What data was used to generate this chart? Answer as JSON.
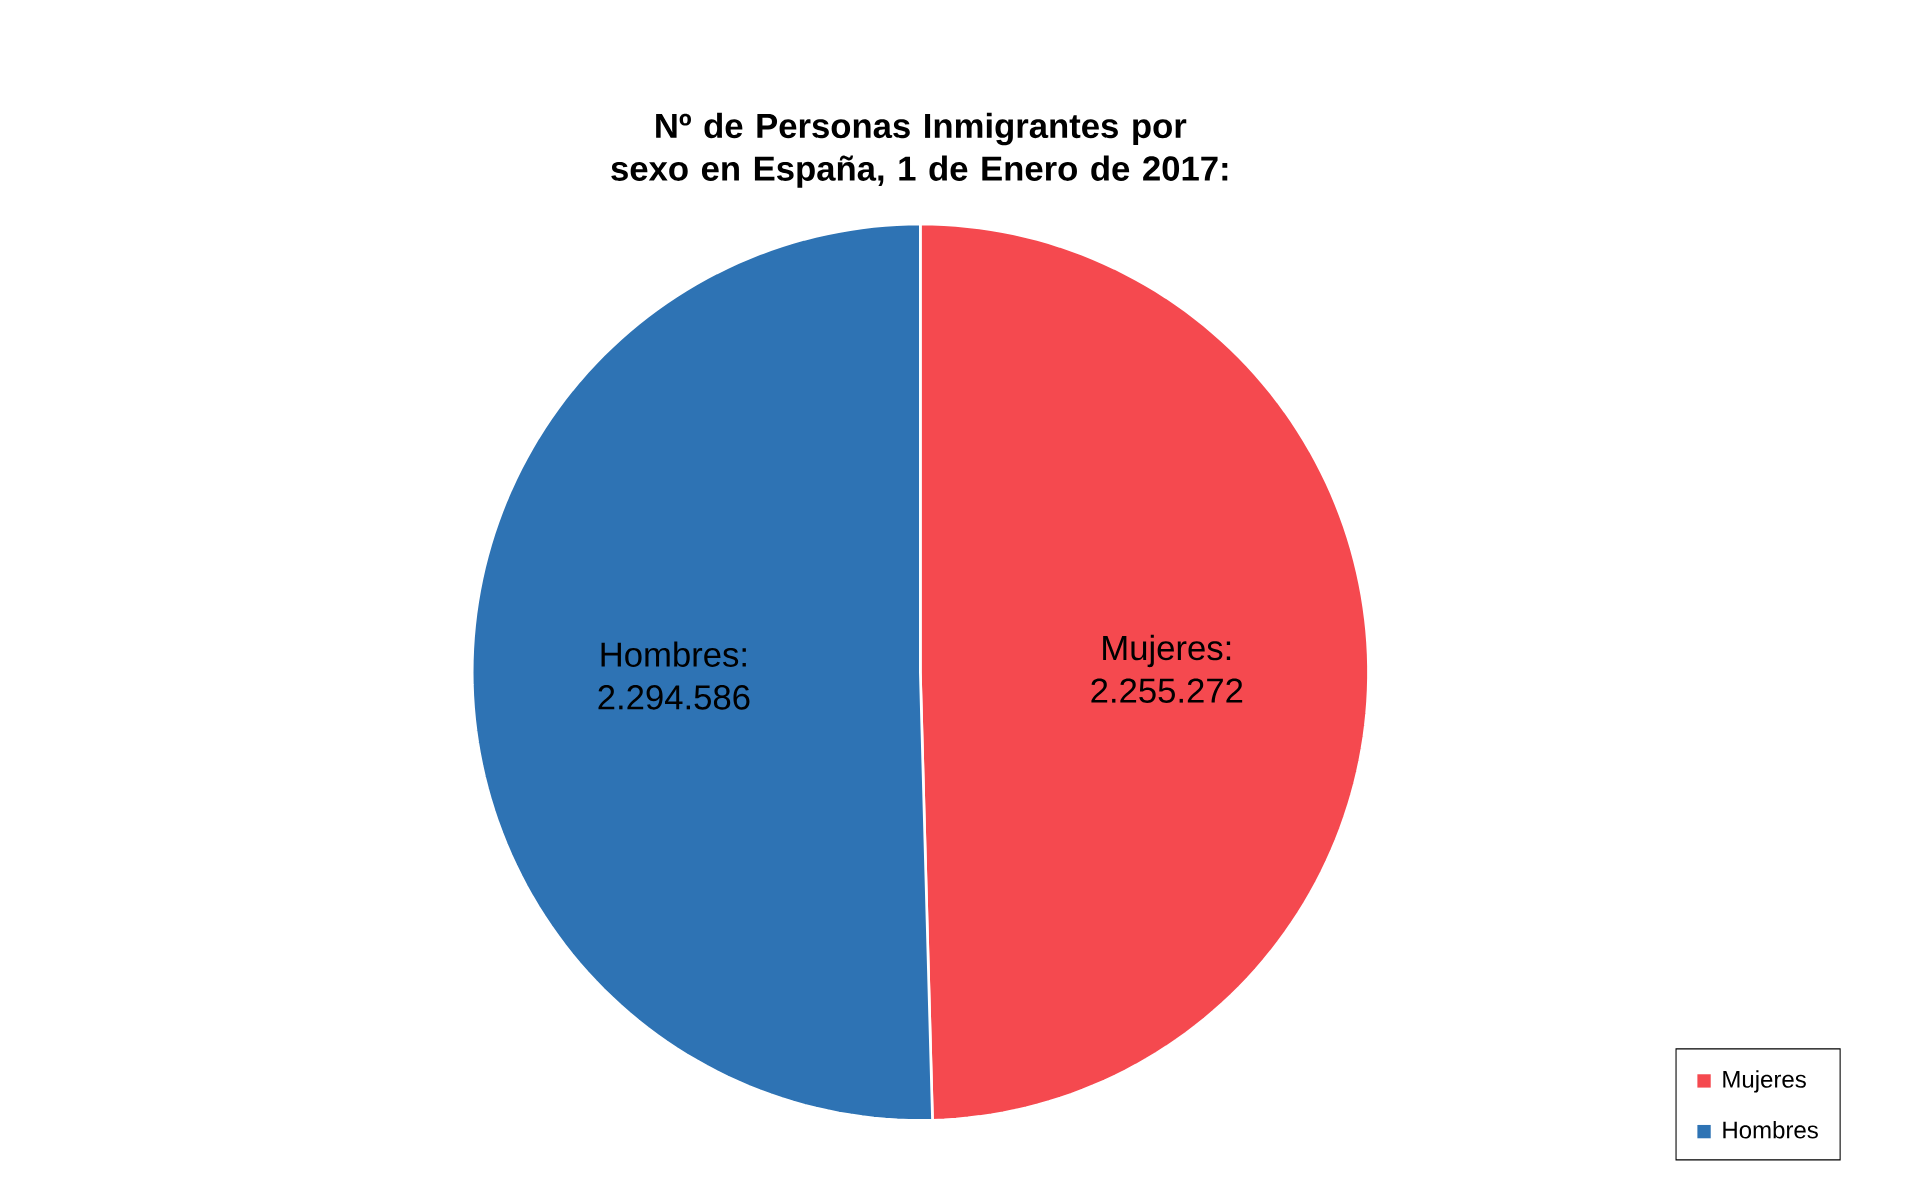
{
  "chart_data": {
    "type": "pie",
    "title": "Nº de Personas Inmigrantes por sexo en España, 1 de Enero de 2017:",
    "categories": [
      "Mujeres",
      "Hombres"
    ],
    "values": [
      2255272,
      2294586
    ],
    "colors": [
      "#f5494f",
      "#2e73b4"
    ],
    "value_labels": [
      "Mujeres: 2.255.272",
      "Hombres: 2.294.586"
    ],
    "legend": "bottom right"
  }
}
